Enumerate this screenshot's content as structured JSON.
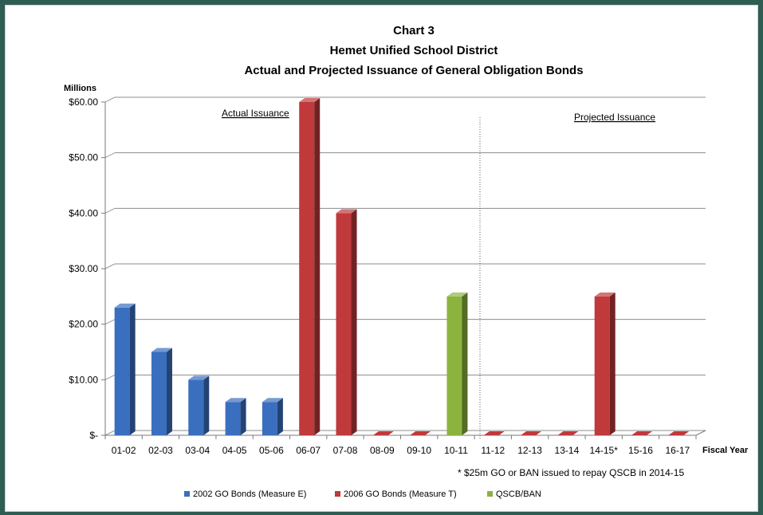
{
  "chart_data": {
    "type": "bar",
    "title_lines": [
      "Chart 3",
      "Hemet Unified School District",
      "Actual and Projected Issuance of General Obligation Bonds"
    ],
    "ylabel": "Millions",
    "xlabel": "Fiscal Year",
    "ylim": [
      0,
      60
    ],
    "yticks": [
      0,
      10,
      20,
      30,
      40,
      50,
      60
    ],
    "ytick_labels": [
      "$-",
      "$10.00",
      "$20.00",
      "$30.00",
      "$40.00",
      "$50.00",
      "$60.00"
    ],
    "categories": [
      "01-02",
      "02-03",
      "03-04",
      "04-05",
      "05-06",
      "06-07",
      "07-08",
      "08-09",
      "09-10",
      "10-11",
      "11-12",
      "12-13",
      "13-14",
      "14-15*",
      "15-16",
      "16-17"
    ],
    "series": [
      {
        "name": "2002 GO Bonds (Measure E)",
        "color": "#3a6fbf",
        "values": [
          23,
          15,
          10,
          6,
          6,
          0,
          0,
          0,
          0,
          0,
          0,
          0,
          0,
          0,
          0,
          0
        ]
      },
      {
        "name": "2006 GO Bonds (Measure T)",
        "color": "#c0393b",
        "values": [
          0,
          0,
          0,
          0,
          0,
          60,
          40,
          0,
          0,
          0,
          0,
          0,
          0,
          25,
          0,
          0
        ]
      },
      {
        "name": "QSCB/BAN",
        "color": "#8db33f",
        "values": [
          0,
          0,
          0,
          0,
          0,
          0,
          0,
          0,
          0,
          25,
          0,
          0,
          0,
          0,
          0,
          0
        ]
      }
    ],
    "annotations": {
      "actual": "Actual Issuance",
      "projected": "Projected Issuance",
      "footnote": "* $25m GO or BAN issued to repay QSCB in 2014-15"
    },
    "grid": true,
    "legend_position": "bottom"
  }
}
